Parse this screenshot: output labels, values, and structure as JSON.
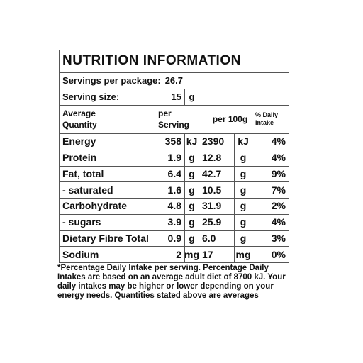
{
  "title": "NUTRITION INFORMATION",
  "servings_per_package": {
    "label": "Servings per package:",
    "value": "26.7"
  },
  "serving_size": {
    "label": "Serving size:",
    "value": "15",
    "unit": "g"
  },
  "header": {
    "quantity": "Average Quantity",
    "per_serving": "per Serving",
    "per_100g": "per 100g",
    "daily_intake": "% Daily Intake"
  },
  "rows": [
    [
      "Energy",
      "358",
      "kJ",
      "2390",
      "kJ",
      "4%"
    ],
    [
      "Protein",
      "1.9",
      "g",
      "12.8",
      "g",
      "4%"
    ],
    [
      "Fat, total",
      "6.4",
      "g",
      "42.7",
      "g",
      "9%"
    ],
    [
      "- saturated",
      "1.6",
      "g",
      "10.5",
      "g",
      "7%"
    ],
    [
      "Carbohydrate",
      "4.8",
      "g",
      "31.9",
      "g",
      "2%"
    ],
    [
      "- sugars",
      "3.9",
      "g",
      "25.9",
      "g",
      "4%"
    ],
    [
      "Dietary Fibre Total",
      "0.9",
      "g",
      "6.0",
      "g",
      "3%"
    ],
    [
      "Sodium",
      "2",
      "mg",
      "17",
      "mg",
      "0%"
    ]
  ],
  "footnote": "*Percentage Daily Intake per serving. Percentage Daily Intakes are based on an average adult diet of 8700 kJ. Your daily intakes may be higher or lower depending on your energy needs. Quantities stated above are averages"
}
